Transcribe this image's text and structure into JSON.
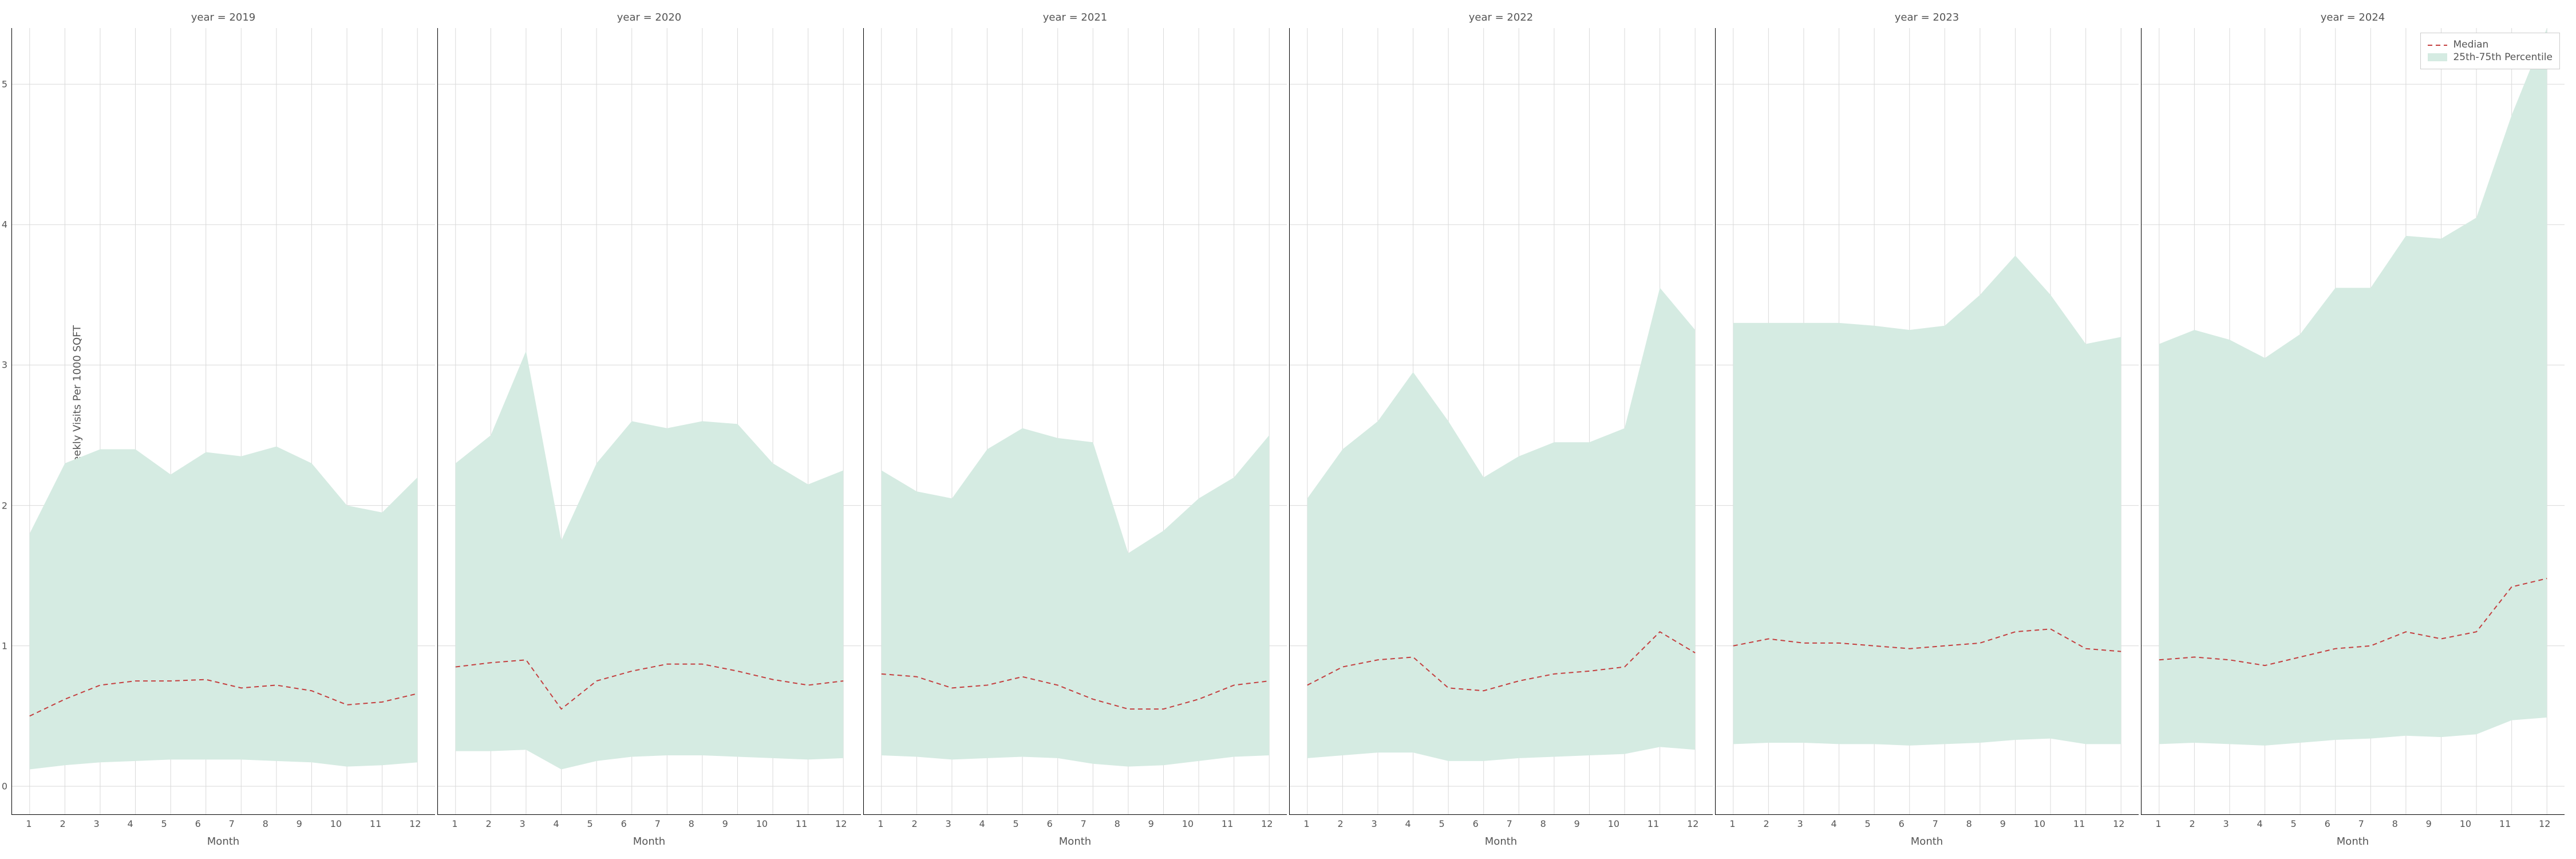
{
  "ylabel": "Average Weekly Visits Per 1000 SQFT",
  "xlabel": "Month",
  "ylim": [
    -0.2,
    5.4
  ],
  "yticks": [
    0,
    1,
    2,
    3,
    4,
    5
  ],
  "xticks": [
    1,
    2,
    3,
    4,
    5,
    6,
    7,
    8,
    9,
    10,
    11,
    12
  ],
  "grid_color": "#d9d9d9",
  "median_color": "#c44040",
  "fill_color": "#d5ebe2",
  "fill_opacity": 1.0,
  "line_width": 2,
  "dash": "8,6",
  "legend": {
    "median": "Median",
    "band": "25th-75th Percentile"
  },
  "panels": [
    {
      "title": "year = 2019",
      "median": [
        0.5,
        0.62,
        0.72,
        0.75,
        0.75,
        0.76,
        0.7,
        0.72,
        0.68,
        0.58,
        0.6,
        0.66
      ],
      "p25": [
        0.12,
        0.15,
        0.17,
        0.18,
        0.19,
        0.19,
        0.19,
        0.18,
        0.17,
        0.14,
        0.15,
        0.17
      ],
      "p75": [
        1.8,
        2.3,
        2.4,
        2.4,
        2.22,
        2.38,
        2.35,
        2.42,
        2.3,
        2.0,
        1.95,
        2.2
      ]
    },
    {
      "title": "year = 2020",
      "median": [
        0.85,
        0.88,
        0.9,
        0.55,
        0.75,
        0.82,
        0.87,
        0.87,
        0.82,
        0.76,
        0.72,
        0.75
      ],
      "p25": [
        0.25,
        0.25,
        0.26,
        0.12,
        0.18,
        0.21,
        0.22,
        0.22,
        0.21,
        0.2,
        0.19,
        0.2
      ],
      "p75": [
        2.3,
        2.5,
        3.1,
        1.75,
        2.3,
        2.6,
        2.55,
        2.6,
        2.58,
        2.3,
        2.15,
        2.25
      ]
    },
    {
      "title": "year = 2021",
      "median": [
        0.8,
        0.78,
        0.7,
        0.72,
        0.78,
        0.72,
        0.62,
        0.55,
        0.55,
        0.62,
        0.72,
        0.75
      ],
      "p25": [
        0.22,
        0.21,
        0.19,
        0.2,
        0.21,
        0.2,
        0.16,
        0.14,
        0.15,
        0.18,
        0.21,
        0.22
      ],
      "p75": [
        2.25,
        2.1,
        2.05,
        2.4,
        2.55,
        2.48,
        2.45,
        1.66,
        1.82,
        2.05,
        2.2,
        2.5
      ]
    },
    {
      "title": "year = 2022",
      "median": [
        0.72,
        0.85,
        0.9,
        0.92,
        0.7,
        0.68,
        0.75,
        0.8,
        0.82,
        0.85,
        1.1,
        0.95
      ],
      "p25": [
        0.2,
        0.22,
        0.24,
        0.24,
        0.18,
        0.18,
        0.2,
        0.21,
        0.22,
        0.23,
        0.28,
        0.26
      ],
      "p75": [
        2.05,
        2.4,
        2.6,
        2.95,
        2.6,
        2.2,
        2.35,
        2.45,
        2.45,
        2.55,
        3.55,
        3.25
      ]
    },
    {
      "title": "year = 2023",
      "median": [
        1.0,
        1.05,
        1.02,
        1.02,
        1.0,
        0.98,
        1.0,
        1.02,
        1.1,
        1.12,
        0.98,
        0.96
      ],
      "p25": [
        0.3,
        0.31,
        0.31,
        0.3,
        0.3,
        0.29,
        0.3,
        0.31,
        0.33,
        0.34,
        0.3,
        0.3
      ],
      "p75": [
        3.3,
        3.3,
        3.3,
        3.3,
        3.28,
        3.25,
        3.28,
        3.5,
        3.78,
        3.5,
        3.15,
        3.2
      ]
    },
    {
      "title": "year = 2024",
      "median": [
        0.9,
        0.92,
        0.9,
        0.86,
        0.92,
        0.98,
        1.0,
        1.1,
        1.05,
        1.1,
        1.42,
        1.48
      ],
      "p25": [
        0.3,
        0.31,
        0.3,
        0.29,
        0.31,
        0.33,
        0.34,
        0.36,
        0.35,
        0.37,
        0.47,
        0.49
      ],
      "p75": [
        3.15,
        3.25,
        3.18,
        3.05,
        3.22,
        3.55,
        3.55,
        3.92,
        3.9,
        4.05,
        4.78,
        5.4
      ]
    }
  ]
}
